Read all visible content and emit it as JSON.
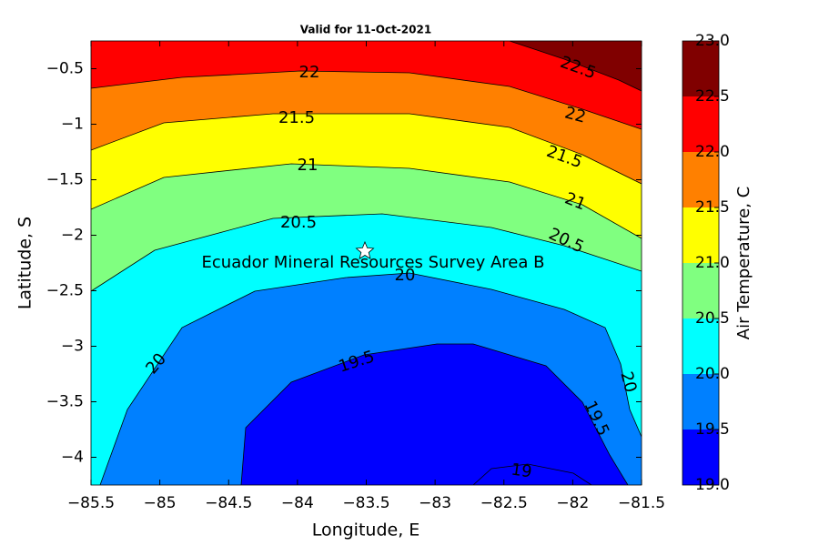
{
  "chart_data": {
    "type": "contour",
    "title": "Valid for 11-Oct-2021",
    "xlabel": "Longitude, E",
    "ylabel": "Latitude, S",
    "colorbar_label": "Air Temperature, C",
    "annotation": "Ecuador Mineral Resources Survey Area B",
    "xlim": [
      -85.5,
      -81.5
    ],
    "ylim": [
      -4.25,
      -0.25
    ],
    "xticks": [
      {
        "value": -85.5,
        "label": "−85.5"
      },
      {
        "value": -85,
        "label": "−85"
      },
      {
        "value": -84.5,
        "label": "−84.5"
      },
      {
        "value": -84,
        "label": "−84"
      },
      {
        "value": -83.5,
        "label": "−83.5"
      },
      {
        "value": -83,
        "label": "−83"
      },
      {
        "value": -82.5,
        "label": "−82.5"
      },
      {
        "value": -82,
        "label": "−82"
      },
      {
        "value": -81.5,
        "label": "−81.5"
      }
    ],
    "yticks": [
      {
        "value": -0.5,
        "label": "−0.5"
      },
      {
        "value": -1,
        "label": "−1"
      },
      {
        "value": -1.5,
        "label": "−1.5"
      },
      {
        "value": -2,
        "label": "−2"
      },
      {
        "value": -2.5,
        "label": "−2.5"
      },
      {
        "value": -3,
        "label": "−3"
      },
      {
        "value": -3.5,
        "label": "−3.5"
      },
      {
        "value": -4,
        "label": "−4"
      }
    ],
    "levels": [
      19,
      19.5,
      20,
      20.5,
      21,
      21.5,
      22,
      22.5,
      23
    ],
    "colors": [
      "#0000ff",
      "#0080ff",
      "#00ffff",
      "#80ff80",
      "#ffff00",
      "#ff8000",
      "#ff0000",
      "#800000"
    ],
    "cticks": [
      {
        "value": 19,
        "label": "19.0"
      },
      {
        "value": 19.5,
        "label": "19.5"
      },
      {
        "value": 20,
        "label": "20.0"
      },
      {
        "value": 20.5,
        "label": "20.5"
      },
      {
        "value": 21,
        "label": "21.0"
      },
      {
        "value": 21.5,
        "label": "21.5"
      },
      {
        "value": 22,
        "label": "22.0"
      },
      {
        "value": 22.5,
        "label": "22.5"
      },
      {
        "value": 23,
        "label": "23.0"
      }
    ],
    "contour_labels": [
      22.5,
      22,
      22,
      21.5,
      21.5,
      21,
      21,
      20.5,
      20.5,
      20,
      20,
      20,
      19.5,
      19.5,
      19
    ]
  }
}
